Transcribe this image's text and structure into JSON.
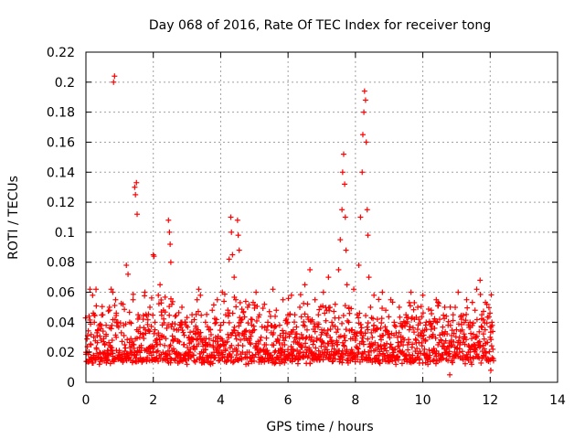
{
  "chart_data": {
    "type": "scatter",
    "title": "Day 068 of 2016, Rate Of TEC Index for receiver tong",
    "xlabel": "GPS time / hours",
    "ylabel": "ROTI / TECUs",
    "xlim": [
      0,
      14
    ],
    "ylim": [
      0,
      0.22
    ],
    "xticks": [
      0,
      2,
      4,
      6,
      8,
      10,
      12,
      14
    ],
    "xtick_labels": [
      "0",
      "2",
      "4",
      "6",
      "8",
      "10",
      "12",
      "14"
    ],
    "yticks": [
      0,
      0.02,
      0.04,
      0.06,
      0.08,
      0.1,
      0.12,
      0.14,
      0.16,
      0.18,
      0.2,
      0.22
    ],
    "ytick_labels": [
      "0",
      "0.02",
      "0.04",
      "0.06",
      "0.08",
      "0.1",
      "0.12",
      "0.14",
      "0.16",
      "0.18",
      "0.2",
      "0.22"
    ],
    "grid": true,
    "marker": "+",
    "color": "#ff0000",
    "series": [
      {
        "name": "ROTI",
        "points": [
          [
            0.0,
            0.02
          ],
          [
            0.05,
            0.031
          ],
          [
            0.1,
            0.015
          ],
          [
            0.12,
            0.062
          ],
          [
            0.15,
            0.025
          ],
          [
            0.2,
            0.058
          ],
          [
            0.22,
            0.018
          ],
          [
            0.25,
            0.04
          ],
          [
            0.3,
            0.062
          ],
          [
            0.32,
            0.022
          ],
          [
            0.35,
            0.035
          ],
          [
            0.4,
            0.012
          ],
          [
            0.45,
            0.028
          ],
          [
            0.5,
            0.045
          ],
          [
            0.55,
            0.02
          ],
          [
            0.6,
            0.038
          ],
          [
            0.65,
            0.015
          ],
          [
            0.7,
            0.05
          ],
          [
            0.75,
            0.062
          ],
          [
            0.78,
            0.028
          ],
          [
            0.8,
            0.06
          ],
          [
            0.82,
            0.2
          ],
          [
            0.85,
            0.204
          ],
          [
            0.88,
            0.055
          ],
          [
            0.9,
            0.03
          ],
          [
            0.95,
            0.04
          ],
          [
            1.0,
            0.018
          ],
          [
            1.05,
            0.033
          ],
          [
            1.1,
            0.052
          ],
          [
            1.15,
            0.025
          ],
          [
            1.2,
            0.078
          ],
          [
            1.25,
            0.072
          ],
          [
            1.3,
            0.04
          ],
          [
            1.35,
            0.02
          ],
          [
            1.4,
            0.055
          ],
          [
            1.45,
            0.13
          ],
          [
            1.47,
            0.125
          ],
          [
            1.5,
            0.133
          ],
          [
            1.52,
            0.112
          ],
          [
            1.55,
            0.045
          ],
          [
            1.6,
            0.03
          ],
          [
            1.65,
            0.015
          ],
          [
            1.7,
            0.042
          ],
          [
            1.75,
            0.06
          ],
          [
            1.8,
            0.022
          ],
          [
            1.85,
            0.035
          ],
          [
            1.9,
            0.05
          ],
          [
            1.95,
            0.018
          ],
          [
            2.0,
            0.085
          ],
          [
            2.02,
            0.084
          ],
          [
            2.05,
            0.04
          ],
          [
            2.1,
            0.025
          ],
          [
            2.15,
            0.058
          ],
          [
            2.2,
            0.065
          ],
          [
            2.25,
            0.03
          ],
          [
            2.3,
            0.048
          ],
          [
            2.35,
            0.015
          ],
          [
            2.4,
            0.036
          ],
          [
            2.45,
            0.108
          ],
          [
            2.48,
            0.1
          ],
          [
            2.5,
            0.092
          ],
          [
            2.52,
            0.08
          ],
          [
            2.55,
            0.052
          ],
          [
            2.6,
            0.028
          ],
          [
            2.65,
            0.044
          ],
          [
            2.7,
            0.02
          ],
          [
            2.75,
            0.035
          ],
          [
            2.8,
            0.016
          ],
          [
            2.85,
            0.05
          ],
          [
            2.9,
            0.025
          ],
          [
            2.95,
            0.04
          ],
          [
            3.0,
            0.012
          ],
          [
            3.05,
            0.03
          ],
          [
            3.1,
            0.022
          ],
          [
            3.15,
            0.045
          ],
          [
            3.2,
            0.018
          ],
          [
            3.25,
            0.032
          ],
          [
            3.3,
            0.055
          ],
          [
            3.35,
            0.062
          ],
          [
            3.4,
            0.058
          ],
          [
            3.45,
            0.028
          ],
          [
            3.5,
            0.015
          ],
          [
            3.55,
            0.04
          ],
          [
            3.6,
            0.025
          ],
          [
            3.65,
            0.035
          ],
          [
            3.7,
            0.012
          ],
          [
            3.75,
            0.048
          ],
          [
            3.8,
            0.02
          ],
          [
            3.85,
            0.03
          ],
          [
            3.9,
            0.055
          ],
          [
            3.95,
            0.018
          ],
          [
            4.0,
            0.038
          ],
          [
            4.05,
            0.06
          ],
          [
            4.1,
            0.025
          ],
          [
            4.15,
            0.045
          ],
          [
            4.2,
            0.015
          ],
          [
            4.25,
            0.082
          ],
          [
            4.3,
            0.11
          ],
          [
            4.32,
            0.1
          ],
          [
            4.35,
            0.085
          ],
          [
            4.4,
            0.07
          ],
          [
            4.45,
            0.055
          ],
          [
            4.5,
            0.108
          ],
          [
            4.52,
            0.098
          ],
          [
            4.55,
            0.088
          ],
          [
            4.6,
            0.04
          ],
          [
            4.65,
            0.02
          ],
          [
            4.7,
            0.032
          ],
          [
            4.75,
            0.012
          ],
          [
            4.8,
            0.05
          ],
          [
            4.85,
            0.028
          ],
          [
            4.9,
            0.042
          ],
          [
            4.95,
            0.018
          ],
          [
            5.0,
            0.035
          ],
          [
            5.05,
            0.06
          ],
          [
            5.1,
            0.022
          ],
          [
            5.15,
            0.045
          ],
          [
            5.2,
            0.03
          ],
          [
            5.25,
            0.015
          ],
          [
            5.3,
            0.052
          ],
          [
            5.35,
            0.025
          ],
          [
            5.4,
            0.04
          ],
          [
            5.45,
            0.018
          ],
          [
            5.5,
            0.033
          ],
          [
            5.55,
            0.062
          ],
          [
            5.6,
            0.02
          ],
          [
            5.65,
            0.048
          ],
          [
            5.7,
            0.028
          ],
          [
            5.75,
            0.038
          ],
          [
            5.8,
            0.015
          ],
          [
            5.85,
            0.055
          ],
          [
            5.9,
            0.025
          ],
          [
            5.95,
            0.042
          ],
          [
            6.0,
            0.018
          ],
          [
            6.05,
            0.032
          ],
          [
            6.1,
            0.058
          ],
          [
            6.15,
            0.022
          ],
          [
            6.2,
            0.045
          ],
          [
            6.25,
            0.03
          ],
          [
            6.3,
            0.015
          ],
          [
            6.35,
            0.05
          ],
          [
            6.4,
            0.025
          ],
          [
            6.45,
            0.038
          ],
          [
            6.5,
            0.065
          ],
          [
            6.55,
            0.02
          ],
          [
            6.6,
            0.042
          ],
          [
            6.65,
            0.075
          ],
          [
            6.7,
            0.03
          ],
          [
            6.75,
            0.018
          ],
          [
            6.8,
            0.055
          ],
          [
            6.85,
            0.028
          ],
          [
            6.9,
            0.045
          ],
          [
            6.95,
            0.015
          ],
          [
            7.0,
            0.035
          ],
          [
            7.05,
            0.06
          ],
          [
            7.1,
            0.022
          ],
          [
            7.15,
            0.048
          ],
          [
            7.2,
            0.07
          ],
          [
            7.25,
            0.03
          ],
          [
            7.3,
            0.04
          ],
          [
            7.35,
            0.018
          ],
          [
            7.4,
            0.052
          ],
          [
            7.45,
            0.025
          ],
          [
            7.5,
            0.075
          ],
          [
            7.55,
            0.095
          ],
          [
            7.6,
            0.115
          ],
          [
            7.62,
            0.14
          ],
          [
            7.65,
            0.152
          ],
          [
            7.68,
            0.132
          ],
          [
            7.7,
            0.11
          ],
          [
            7.72,
            0.088
          ],
          [
            7.75,
            0.065
          ],
          [
            7.8,
            0.04
          ],
          [
            7.85,
            0.02
          ],
          [
            7.9,
            0.035
          ],
          [
            7.95,
            0.062
          ],
          [
            8.0,
            0.028
          ],
          [
            8.05,
            0.045
          ],
          [
            8.1,
            0.078
          ],
          [
            8.15,
            0.11
          ],
          [
            8.2,
            0.14
          ],
          [
            8.22,
            0.165
          ],
          [
            8.25,
            0.18
          ],
          [
            8.27,
            0.194
          ],
          [
            8.3,
            0.188
          ],
          [
            8.32,
            0.16
          ],
          [
            8.35,
            0.115
          ],
          [
            8.37,
            0.098
          ],
          [
            8.4,
            0.07
          ],
          [
            8.45,
            0.05
          ],
          [
            8.5,
            0.03
          ],
          [
            8.55,
            0.058
          ],
          [
            8.6,
            0.022
          ],
          [
            8.65,
            0.042
          ],
          [
            8.7,
            0.015
          ],
          [
            8.75,
            0.036
          ],
          [
            8.8,
            0.06
          ],
          [
            8.85,
            0.025
          ],
          [
            8.9,
            0.048
          ],
          [
            8.95,
            0.018
          ],
          [
            9.0,
            0.032
          ],
          [
            9.05,
            0.055
          ],
          [
            9.1,
            0.022
          ],
          [
            9.15,
            0.04
          ],
          [
            9.2,
            0.012
          ],
          [
            9.25,
            0.03
          ],
          [
            9.3,
            0.05
          ],
          [
            9.35,
            0.02
          ],
          [
            9.4,
            0.038
          ],
          [
            9.45,
            0.015
          ],
          [
            9.5,
            0.045
          ],
          [
            9.55,
            0.025
          ],
          [
            9.6,
            0.035
          ],
          [
            9.65,
            0.06
          ],
          [
            9.7,
            0.018
          ],
          [
            9.75,
            0.042
          ],
          [
            9.8,
            0.028
          ],
          [
            9.85,
            0.05
          ],
          [
            9.9,
            0.015
          ],
          [
            9.95,
            0.033
          ],
          [
            10.0,
            0.058
          ],
          [
            10.05,
            0.022
          ],
          [
            10.1,
            0.04
          ],
          [
            10.15,
            0.012
          ],
          [
            10.2,
            0.03
          ],
          [
            10.25,
            0.048
          ],
          [
            10.3,
            0.02
          ],
          [
            10.35,
            0.036
          ],
          [
            10.4,
            0.055
          ],
          [
            10.45,
            0.025
          ],
          [
            10.5,
            0.042
          ],
          [
            10.55,
            0.015
          ],
          [
            10.6,
            0.032
          ],
          [
            10.65,
            0.05
          ],
          [
            10.7,
            0.022
          ],
          [
            10.75,
            0.038
          ],
          [
            10.8,
            0.005
          ],
          [
            10.85,
            0.028
          ],
          [
            10.9,
            0.045
          ],
          [
            10.95,
            0.018
          ],
          [
            11.0,
            0.035
          ],
          [
            11.05,
            0.06
          ],
          [
            11.1,
            0.025
          ],
          [
            11.15,
            0.042
          ],
          [
            11.2,
            0.015
          ],
          [
            11.25,
            0.03
          ],
          [
            11.3,
            0.055
          ],
          [
            11.35,
            0.02
          ],
          [
            11.4,
            0.04
          ],
          [
            11.45,
            0.012
          ],
          [
            11.5,
            0.032
          ],
          [
            11.55,
            0.048
          ],
          [
            11.6,
            0.062
          ],
          [
            11.65,
            0.025
          ],
          [
            11.7,
            0.068
          ],
          [
            11.75,
            0.045
          ],
          [
            11.8,
            0.018
          ],
          [
            11.85,
            0.035
          ],
          [
            11.9,
            0.052
          ],
          [
            11.95,
            0.015
          ],
          [
            12.0,
            0.03
          ],
          [
            12.02,
            0.008
          ],
          [
            12.05,
            0.04
          ],
          [
            12.08,
            0.022
          ]
        ]
      }
    ],
    "band_band": "dense band of ROTI values mostly between 0.01 and 0.06 TECU/min for 0-12 h",
    "band_ymin": 0.005,
    "band_ymax": 0.06,
    "band_xmin": 0.0,
    "band_xmax": 12.1
  }
}
